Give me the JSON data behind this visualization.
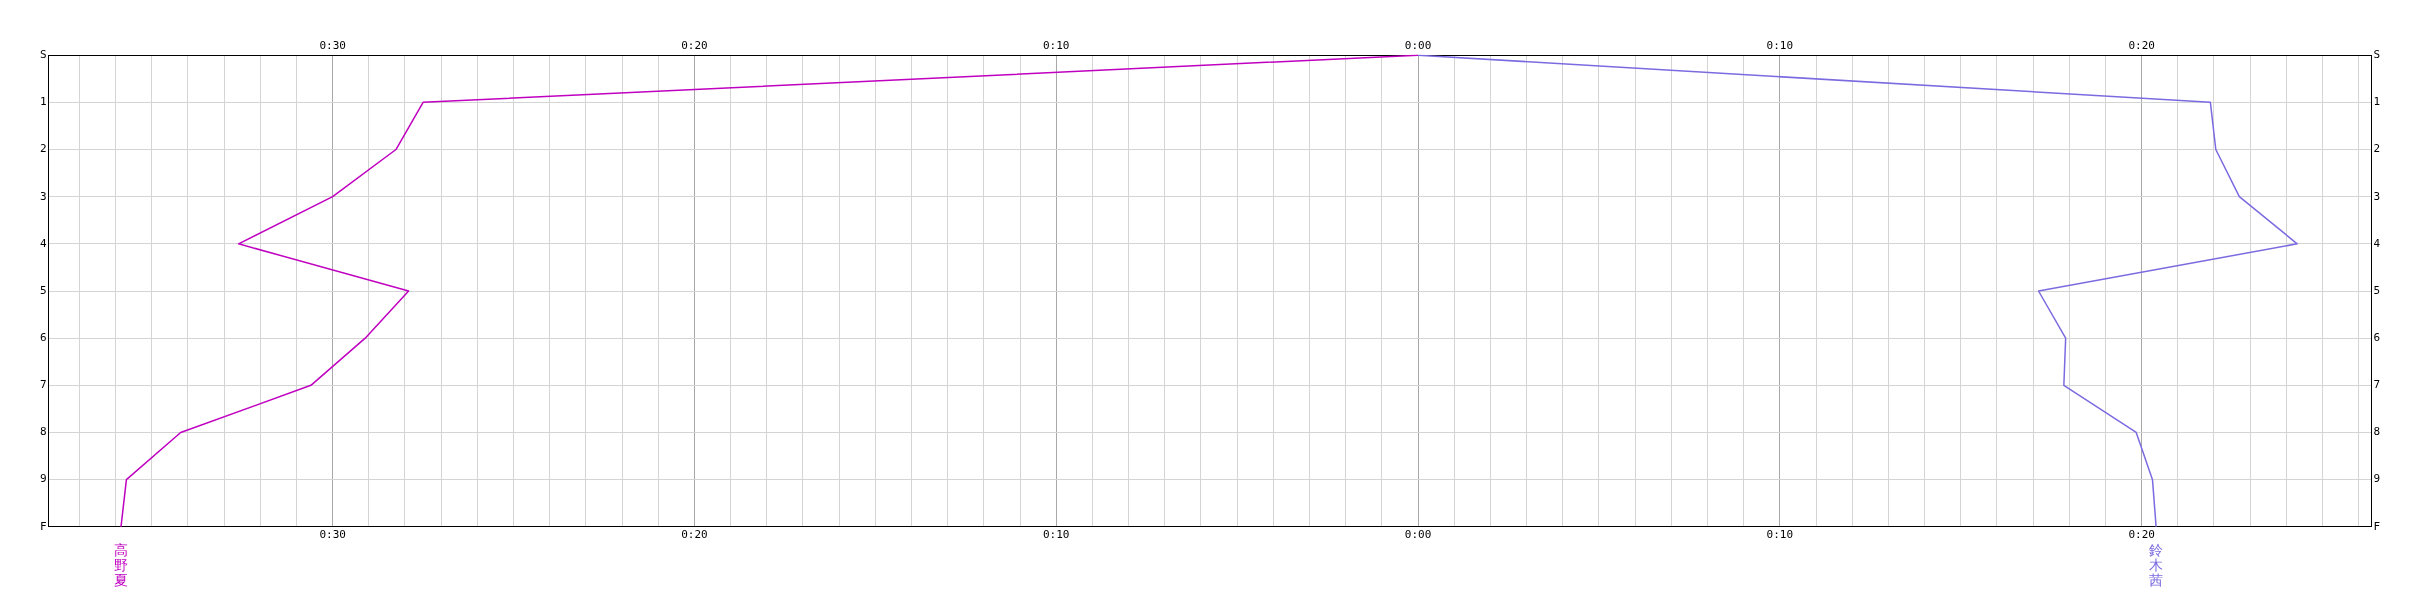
{
  "chart_data": {
    "type": "line",
    "xlim": [
      -37.85,
      26.35
    ],
    "xticks": [
      {
        "value": -37,
        "label": null
      },
      {
        "value": -36,
        "label": null
      },
      {
        "value": -35,
        "label": null
      },
      {
        "value": -34,
        "label": null
      },
      {
        "value": -33,
        "label": null
      },
      {
        "value": -32,
        "label": null
      },
      {
        "value": -31,
        "label": null
      },
      {
        "value": -30,
        "label": "0:30"
      },
      {
        "value": -29,
        "label": null
      },
      {
        "value": -28,
        "label": null
      },
      {
        "value": -27,
        "label": null
      },
      {
        "value": -26,
        "label": null
      },
      {
        "value": -25,
        "label": null
      },
      {
        "value": -24,
        "label": null
      },
      {
        "value": -23,
        "label": null
      },
      {
        "value": -22,
        "label": null
      },
      {
        "value": -21,
        "label": null
      },
      {
        "value": -20,
        "label": "0:20"
      },
      {
        "value": -19,
        "label": null
      },
      {
        "value": -18,
        "label": null
      },
      {
        "value": -17,
        "label": null
      },
      {
        "value": -16,
        "label": null
      },
      {
        "value": -15,
        "label": null
      },
      {
        "value": -14,
        "label": null
      },
      {
        "value": -13,
        "label": null
      },
      {
        "value": -12,
        "label": null
      },
      {
        "value": -11,
        "label": null
      },
      {
        "value": -10,
        "label": "0:10"
      },
      {
        "value": -9,
        "label": null
      },
      {
        "value": -8,
        "label": null
      },
      {
        "value": -7,
        "label": null
      },
      {
        "value": -6,
        "label": null
      },
      {
        "value": -5,
        "label": null
      },
      {
        "value": -4,
        "label": null
      },
      {
        "value": -3,
        "label": null
      },
      {
        "value": -2,
        "label": null
      },
      {
        "value": -1,
        "label": null
      },
      {
        "value": 0,
        "label": "0:00"
      },
      {
        "value": 1,
        "label": null
      },
      {
        "value": 2,
        "label": null
      },
      {
        "value": 3,
        "label": null
      },
      {
        "value": 4,
        "label": null
      },
      {
        "value": 5,
        "label": null
      },
      {
        "value": 6,
        "label": null
      },
      {
        "value": 7,
        "label": null
      },
      {
        "value": 8,
        "label": null
      },
      {
        "value": 9,
        "label": null
      },
      {
        "value": 10,
        "label": "0:10"
      },
      {
        "value": 11,
        "label": null
      },
      {
        "value": 12,
        "label": null
      },
      {
        "value": 13,
        "label": null
      },
      {
        "value": 14,
        "label": null
      },
      {
        "value": 15,
        "label": null
      },
      {
        "value": 16,
        "label": null
      },
      {
        "value": 17,
        "label": null
      },
      {
        "value": 18,
        "label": null
      },
      {
        "value": 19,
        "label": null
      },
      {
        "value": 20,
        "label": "0:20"
      },
      {
        "value": 21,
        "label": null
      },
      {
        "value": 22,
        "label": null
      },
      {
        "value": 23,
        "label": null
      },
      {
        "value": 24,
        "label": null
      },
      {
        "value": 25,
        "label": null
      },
      {
        "value": 26,
        "label": null
      }
    ],
    "x2lim": [
      -37.85,
      26.35
    ],
    "x2ticks": [
      {
        "value": -37,
        "label": null
      },
      {
        "value": -36,
        "label": null
      },
      {
        "value": -35,
        "label": null
      },
      {
        "value": -34,
        "label": null
      },
      {
        "value": -33,
        "label": null
      },
      {
        "value": -32,
        "label": null
      },
      {
        "value": -31,
        "label": null
      },
      {
        "value": -30,
        "label": "0:30"
      },
      {
        "value": -29,
        "label": null
      },
      {
        "value": -28,
        "label": null
      },
      {
        "value": -27,
        "label": null
      },
      {
        "value": -26,
        "label": null
      },
      {
        "value": -25,
        "label": null
      },
      {
        "value": -24,
        "label": null
      },
      {
        "value": -23,
        "label": null
      },
      {
        "value": -22,
        "label": null
      },
      {
        "value": -21,
        "label": null
      },
      {
        "value": -20,
        "label": "0:20"
      },
      {
        "value": -19,
        "label": null
      },
      {
        "value": -18,
        "label": null
      },
      {
        "value": -17,
        "label": null
      },
      {
        "value": -16,
        "label": null
      },
      {
        "value": -15,
        "label": null
      },
      {
        "value": -14,
        "label": null
      },
      {
        "value": -13,
        "label": null
      },
      {
        "value": -12,
        "label": null
      },
      {
        "value": -11,
        "label": null
      },
      {
        "value": -10,
        "label": "0:10"
      },
      {
        "value": -9,
        "label": null
      },
      {
        "value": -8,
        "label": null
      },
      {
        "value": -7,
        "label": null
      },
      {
        "value": -6,
        "label": null
      },
      {
        "value": -5,
        "label": null
      },
      {
        "value": -4,
        "label": null
      },
      {
        "value": -3,
        "label": null
      },
      {
        "value": -2,
        "label": null
      },
      {
        "value": -1,
        "label": null
      },
      {
        "value": 0,
        "label": "0:00"
      },
      {
        "value": 1,
        "label": null
      },
      {
        "value": 2,
        "label": null
      },
      {
        "value": 3,
        "label": null
      },
      {
        "value": 4,
        "label": null
      },
      {
        "value": 5,
        "label": null
      },
      {
        "value": 6,
        "label": null
      },
      {
        "value": 7,
        "label": null
      },
      {
        "value": 8,
        "label": null
      },
      {
        "value": 9,
        "label": null
      },
      {
        "value": 10,
        "label": "0:10"
      },
      {
        "value": 11,
        "label": null
      },
      {
        "value": 12,
        "label": null
      },
      {
        "value": 13,
        "label": null
      },
      {
        "value": 14,
        "label": null
      },
      {
        "value": 15,
        "label": null
      },
      {
        "value": 16,
        "label": null
      },
      {
        "value": 17,
        "label": null
      },
      {
        "value": 18,
        "label": null
      },
      {
        "value": 19,
        "label": null
      },
      {
        "value": 20,
        "label": "0:20"
      },
      {
        "value": 21,
        "label": null
      },
      {
        "value": 22,
        "label": null
      },
      {
        "value": 23,
        "label": null
      },
      {
        "value": 24,
        "label": null
      },
      {
        "value": 25,
        "label": null
      },
      {
        "value": 26,
        "label": null
      }
    ],
    "orientation": "horizontal",
    "categories": [
      "S",
      "1",
      "2",
      "3",
      "4",
      "5",
      "6",
      "7",
      "8",
      "9",
      "F"
    ],
    "y2_categories": [
      "S",
      "1",
      "2",
      "3",
      "4",
      "5",
      "6",
      "7",
      "8",
      "9",
      "F"
    ],
    "grid": true,
    "marker": "none",
    "line_style": "solid",
    "series": [
      {
        "name": "高野夏",
        "color": "#c000c0",
        "values": [
          0,
          -27.5,
          -28.25,
          -30.0,
          -32.6,
          -27.9,
          -29.1,
          -30.6,
          -34.2,
          -35.7,
          -35.85
        ]
      },
      {
        "name": "鈴木茜",
        "color": "#7b6be0",
        "values": [
          0,
          21.9,
          22.05,
          22.7,
          24.3,
          17.15,
          17.9,
          17.85,
          19.85,
          20.3,
          20.4
        ]
      }
    ]
  }
}
